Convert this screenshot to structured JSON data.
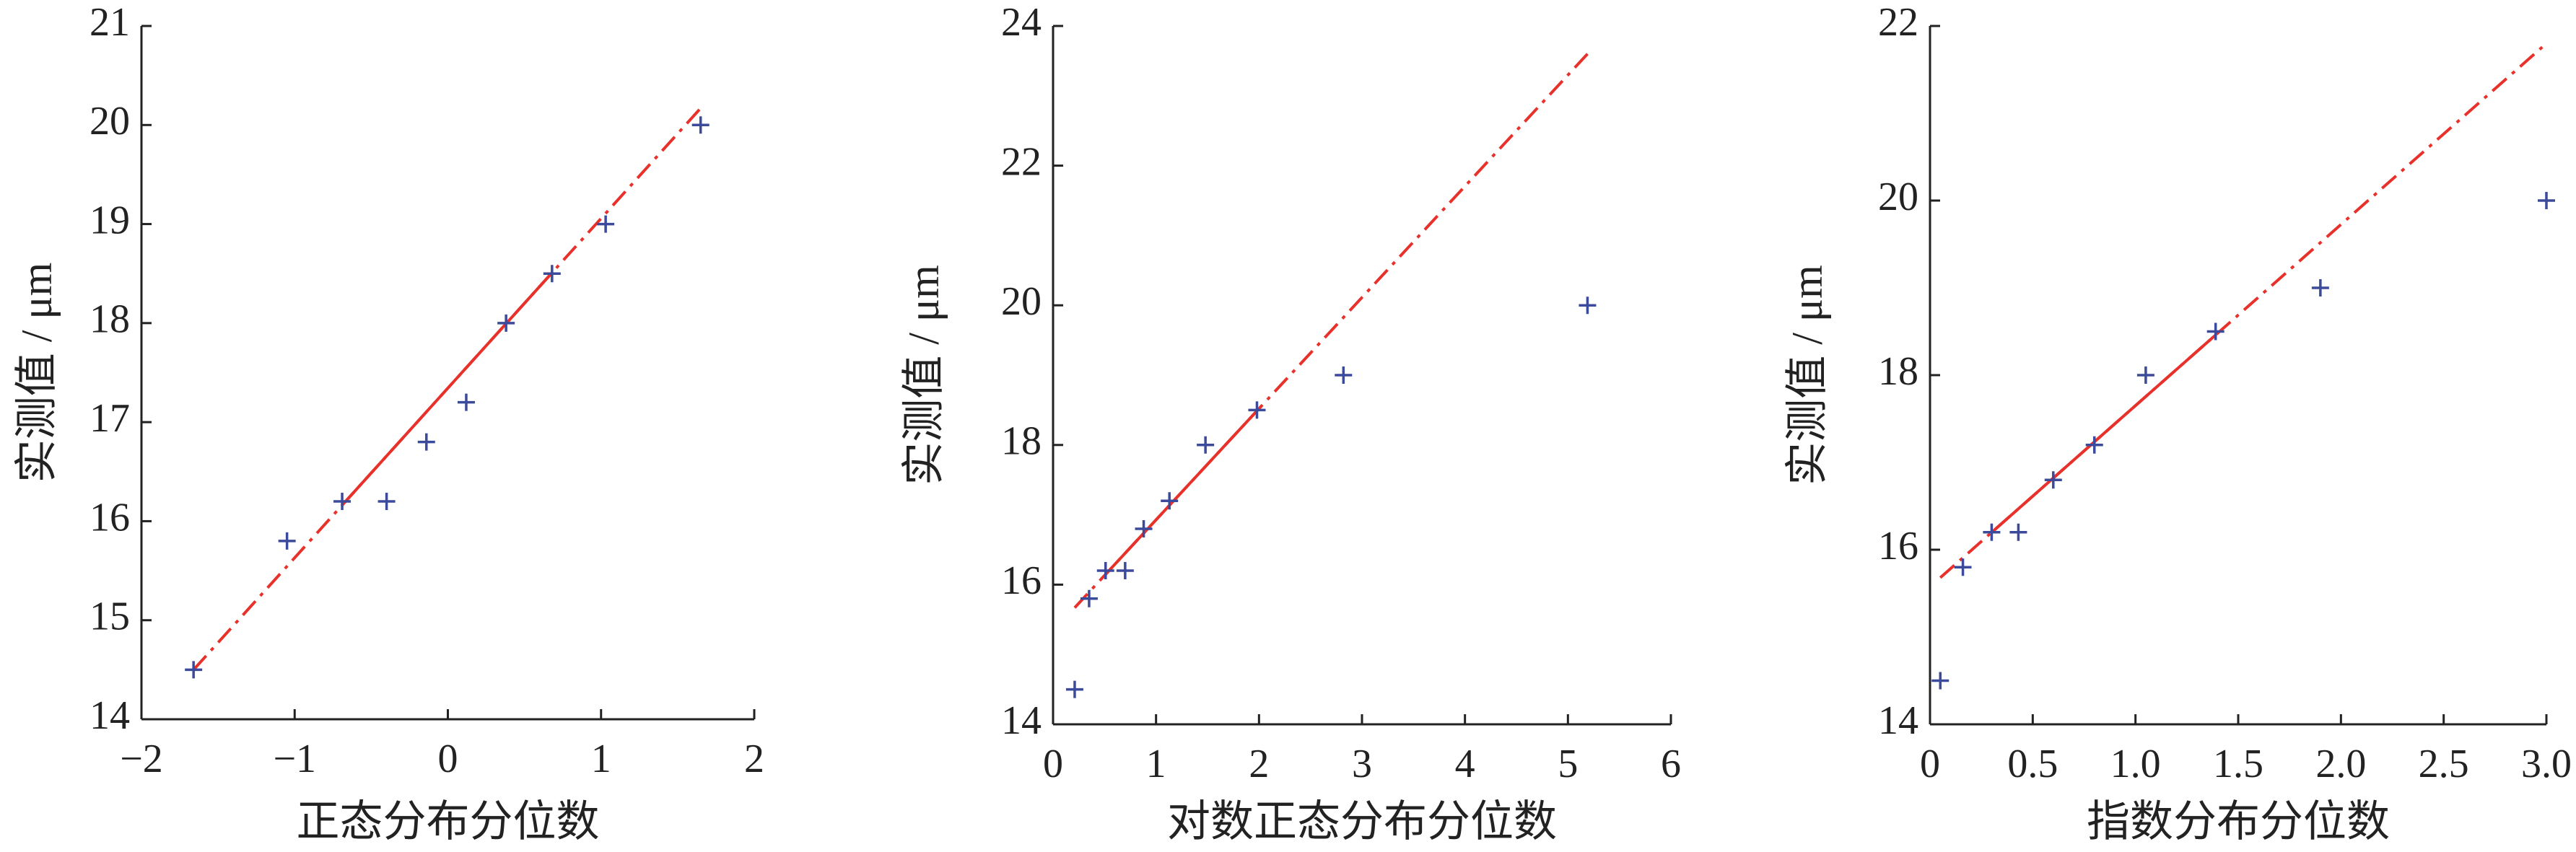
{
  "chart_data": [
    {
      "type": "scatter",
      "xlabel": "正态分布分位数",
      "ylabel": "实测值 / μm",
      "x": [
        -1.66,
        -1.05,
        -0.69,
        -0.4,
        -0.14,
        0.12,
        0.38,
        0.68,
        1.03,
        1.65
      ],
      "values": [
        14.5,
        15.8,
        16.2,
        16.2,
        16.8,
        17.2,
        18.0,
        18.5,
        19.0,
        20.0
      ],
      "color": "#3b4a9a",
      "fit": {
        "x": [
          -1.66,
          1.65
        ],
        "values": [
          14.5,
          20.17
        ],
        "color": "#e8312a"
      },
      "xlim": [
        -2,
        2
      ],
      "ylim": [
        14,
        21
      ],
      "xticks": [
        {
          "value": -2,
          "label": "−2"
        },
        {
          "value": -1,
          "label": "−1"
        },
        0,
        1,
        2
      ],
      "yticks": [
        14,
        15,
        16,
        17,
        18,
        19,
        20,
        21
      ]
    },
    {
      "type": "scatter",
      "xlabel": "对数正态分布分位数",
      "ylabel": "实测值 / μm",
      "x": [
        0.21,
        0.35,
        0.51,
        0.7,
        0.88,
        1.13,
        1.48,
        1.98,
        2.82,
        5.19
      ],
      "values": [
        14.5,
        15.8,
        16.2,
        16.2,
        16.8,
        17.2,
        18.0,
        18.5,
        19.0,
        20.0
      ],
      "color": "#3b4a9a",
      "fit": {
        "x": [
          0.21,
          5.19
        ],
        "values": [
          15.67,
          23.6
        ],
        "color": "#e8312a"
      },
      "xlim": [
        0,
        6
      ],
      "ylim": [
        14,
        24
      ],
      "xticks": [
        0,
        1,
        2,
        3,
        4,
        5,
        6
      ],
      "yticks": [
        14,
        16,
        18,
        20,
        22,
        24
      ]
    },
    {
      "type": "scatter",
      "xlabel": "指数分布分位数",
      "ylabel": "实测值 / μm",
      "x": [
        0.05,
        0.16,
        0.3,
        0.43,
        0.6,
        0.8,
        1.05,
        1.39,
        1.9,
        3.0
      ],
      "values": [
        14.5,
        15.8,
        16.2,
        16.2,
        16.8,
        17.2,
        18.0,
        18.5,
        19.0,
        20.0
      ],
      "color": "#3b4a9a",
      "fit": {
        "x": [
          0.05,
          3.0
        ],
        "values": [
          15.68,
          21.8
        ],
        "color": "#e8312a"
      },
      "xlim": [
        0,
        3
      ],
      "ylim": [
        14,
        22
      ],
      "xticks": [
        0,
        0.5,
        {
          "value": 1,
          "label": "1.0"
        },
        1.5,
        {
          "value": 2,
          "label": "2.0"
        },
        2.5,
        {
          "value": 3,
          "label": "3.0"
        }
      ],
      "yticks": [
        14,
        16,
        18,
        20,
        22
      ]
    }
  ]
}
